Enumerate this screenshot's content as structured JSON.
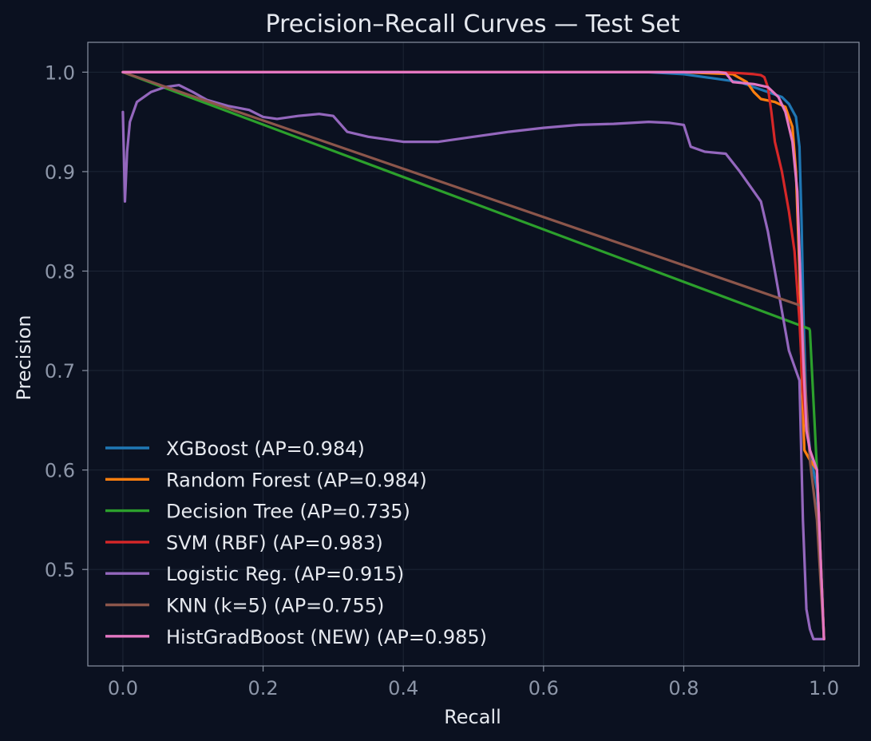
{
  "chart_data": {
    "type": "line",
    "title": "Precision–Recall Curves — Test Set",
    "xlabel": "Recall",
    "ylabel": "Precision",
    "xlim": [
      -0.05,
      1.05
    ],
    "ylim": [
      0.403,
      1.03
    ],
    "xticks": [
      0.0,
      0.2,
      0.4,
      0.6,
      0.8,
      1.0
    ],
    "xtick_labels": [
      "0.0",
      "0.2",
      "0.4",
      "0.6",
      "0.8",
      "1.0"
    ],
    "yticks": [
      0.5,
      0.6,
      0.7,
      0.8,
      0.9,
      1.0
    ],
    "ytick_labels": [
      "0.5",
      "0.6",
      "0.7",
      "0.8",
      "0.9",
      "1.0"
    ],
    "grid": true,
    "legend_position": "lower-left",
    "series": [
      {
        "name": "XGBoost (AP=0.984)",
        "color": "#1f77b4",
        "x": [
          0.0,
          0.3,
          0.6,
          0.75,
          0.8,
          0.84,
          0.88,
          0.9,
          0.92,
          0.94,
          0.95,
          0.96,
          0.965,
          0.968,
          0.971,
          0.975,
          0.98,
          0.99,
          1.0
        ],
        "y": [
          1.0,
          1.0,
          1.0,
          1.0,
          0.998,
          0.994,
          0.99,
          0.985,
          0.98,
          0.975,
          0.968,
          0.955,
          0.925,
          0.85,
          0.75,
          0.66,
          0.62,
          0.58,
          0.43
        ]
      },
      {
        "name": "Random Forest (AP=0.984)",
        "color": "#ff7f0e",
        "x": [
          0.0,
          0.3,
          0.6,
          0.8,
          0.87,
          0.89,
          0.9,
          0.91,
          0.93,
          0.945,
          0.955,
          0.96,
          0.965,
          0.968,
          0.972,
          0.98,
          0.99,
          1.0
        ],
        "y": [
          1.0,
          1.0,
          1.0,
          1.0,
          0.998,
          0.99,
          0.98,
          0.973,
          0.97,
          0.965,
          0.945,
          0.9,
          0.8,
          0.7,
          0.62,
          0.61,
          0.6,
          0.43
        ]
      },
      {
        "name": "Decision Tree (AP=0.735)",
        "color": "#2ca02c",
        "x": [
          0.0,
          0.979,
          0.98,
          0.99,
          1.0
        ],
        "y": [
          1.0,
          0.742,
          0.74,
          0.6,
          0.43
        ]
      },
      {
        "name": "SVM (RBF) (AP=0.983)",
        "color": "#d62728",
        "x": [
          0.0,
          0.3,
          0.6,
          0.85,
          0.88,
          0.9,
          0.91,
          0.915,
          0.92,
          0.925,
          0.93,
          0.94,
          0.95,
          0.958,
          0.965,
          0.97,
          0.975,
          0.98,
          0.99,
          1.0
        ],
        "y": [
          1.0,
          1.0,
          1.0,
          1.0,
          0.999,
          0.998,
          0.997,
          0.995,
          0.985,
          0.96,
          0.93,
          0.9,
          0.86,
          0.82,
          0.75,
          0.68,
          0.64,
          0.62,
          0.6,
          0.43
        ]
      },
      {
        "name": "Logistic Reg. (AP=0.915)",
        "color": "#9467bd",
        "x": [
          0.0,
          0.003,
          0.006,
          0.01,
          0.02,
          0.04,
          0.06,
          0.08,
          0.1,
          0.12,
          0.15,
          0.18,
          0.2,
          0.22,
          0.25,
          0.28,
          0.3,
          0.32,
          0.35,
          0.4,
          0.45,
          0.5,
          0.55,
          0.6,
          0.65,
          0.7,
          0.75,
          0.78,
          0.8,
          0.81,
          0.83,
          0.86,
          0.88,
          0.9,
          0.91,
          0.92,
          0.93,
          0.94,
          0.95,
          0.96,
          0.965,
          0.97,
          0.975,
          0.98,
          0.985,
          0.99,
          1.0
        ],
        "y": [
          0.96,
          0.87,
          0.92,
          0.95,
          0.97,
          0.98,
          0.985,
          0.987,
          0.98,
          0.972,
          0.966,
          0.962,
          0.955,
          0.953,
          0.956,
          0.958,
          0.956,
          0.94,
          0.935,
          0.93,
          0.93,
          0.935,
          0.94,
          0.944,
          0.947,
          0.948,
          0.95,
          0.949,
          0.947,
          0.925,
          0.92,
          0.918,
          0.9,
          0.88,
          0.87,
          0.84,
          0.8,
          0.76,
          0.72,
          0.7,
          0.69,
          0.55,
          0.46,
          0.44,
          0.43,
          0.43,
          0.43
        ]
      },
      {
        "name": "KNN (k=5) (AP=0.755)",
        "color": "#8c564b",
        "x": [
          0.0,
          0.968,
          0.972,
          0.98,
          0.99,
          1.0
        ],
        "y": [
          1.0,
          0.765,
          0.7,
          0.61,
          0.55,
          0.43
        ]
      },
      {
        "name": "HistGradBoost (NEW) (AP=0.985)",
        "color": "#e377c2",
        "x": [
          0.0,
          0.3,
          0.6,
          0.85,
          0.86,
          0.87,
          0.9,
          0.92,
          0.935,
          0.945,
          0.955,
          0.962,
          0.966,
          0.97,
          0.975,
          0.98,
          0.99,
          1.0
        ],
        "y": [
          1.0,
          1.0,
          1.0,
          1.0,
          0.999,
          0.99,
          0.988,
          0.985,
          0.975,
          0.96,
          0.93,
          0.88,
          0.8,
          0.72,
          0.64,
          0.62,
          0.6,
          0.43
        ]
      }
    ]
  }
}
